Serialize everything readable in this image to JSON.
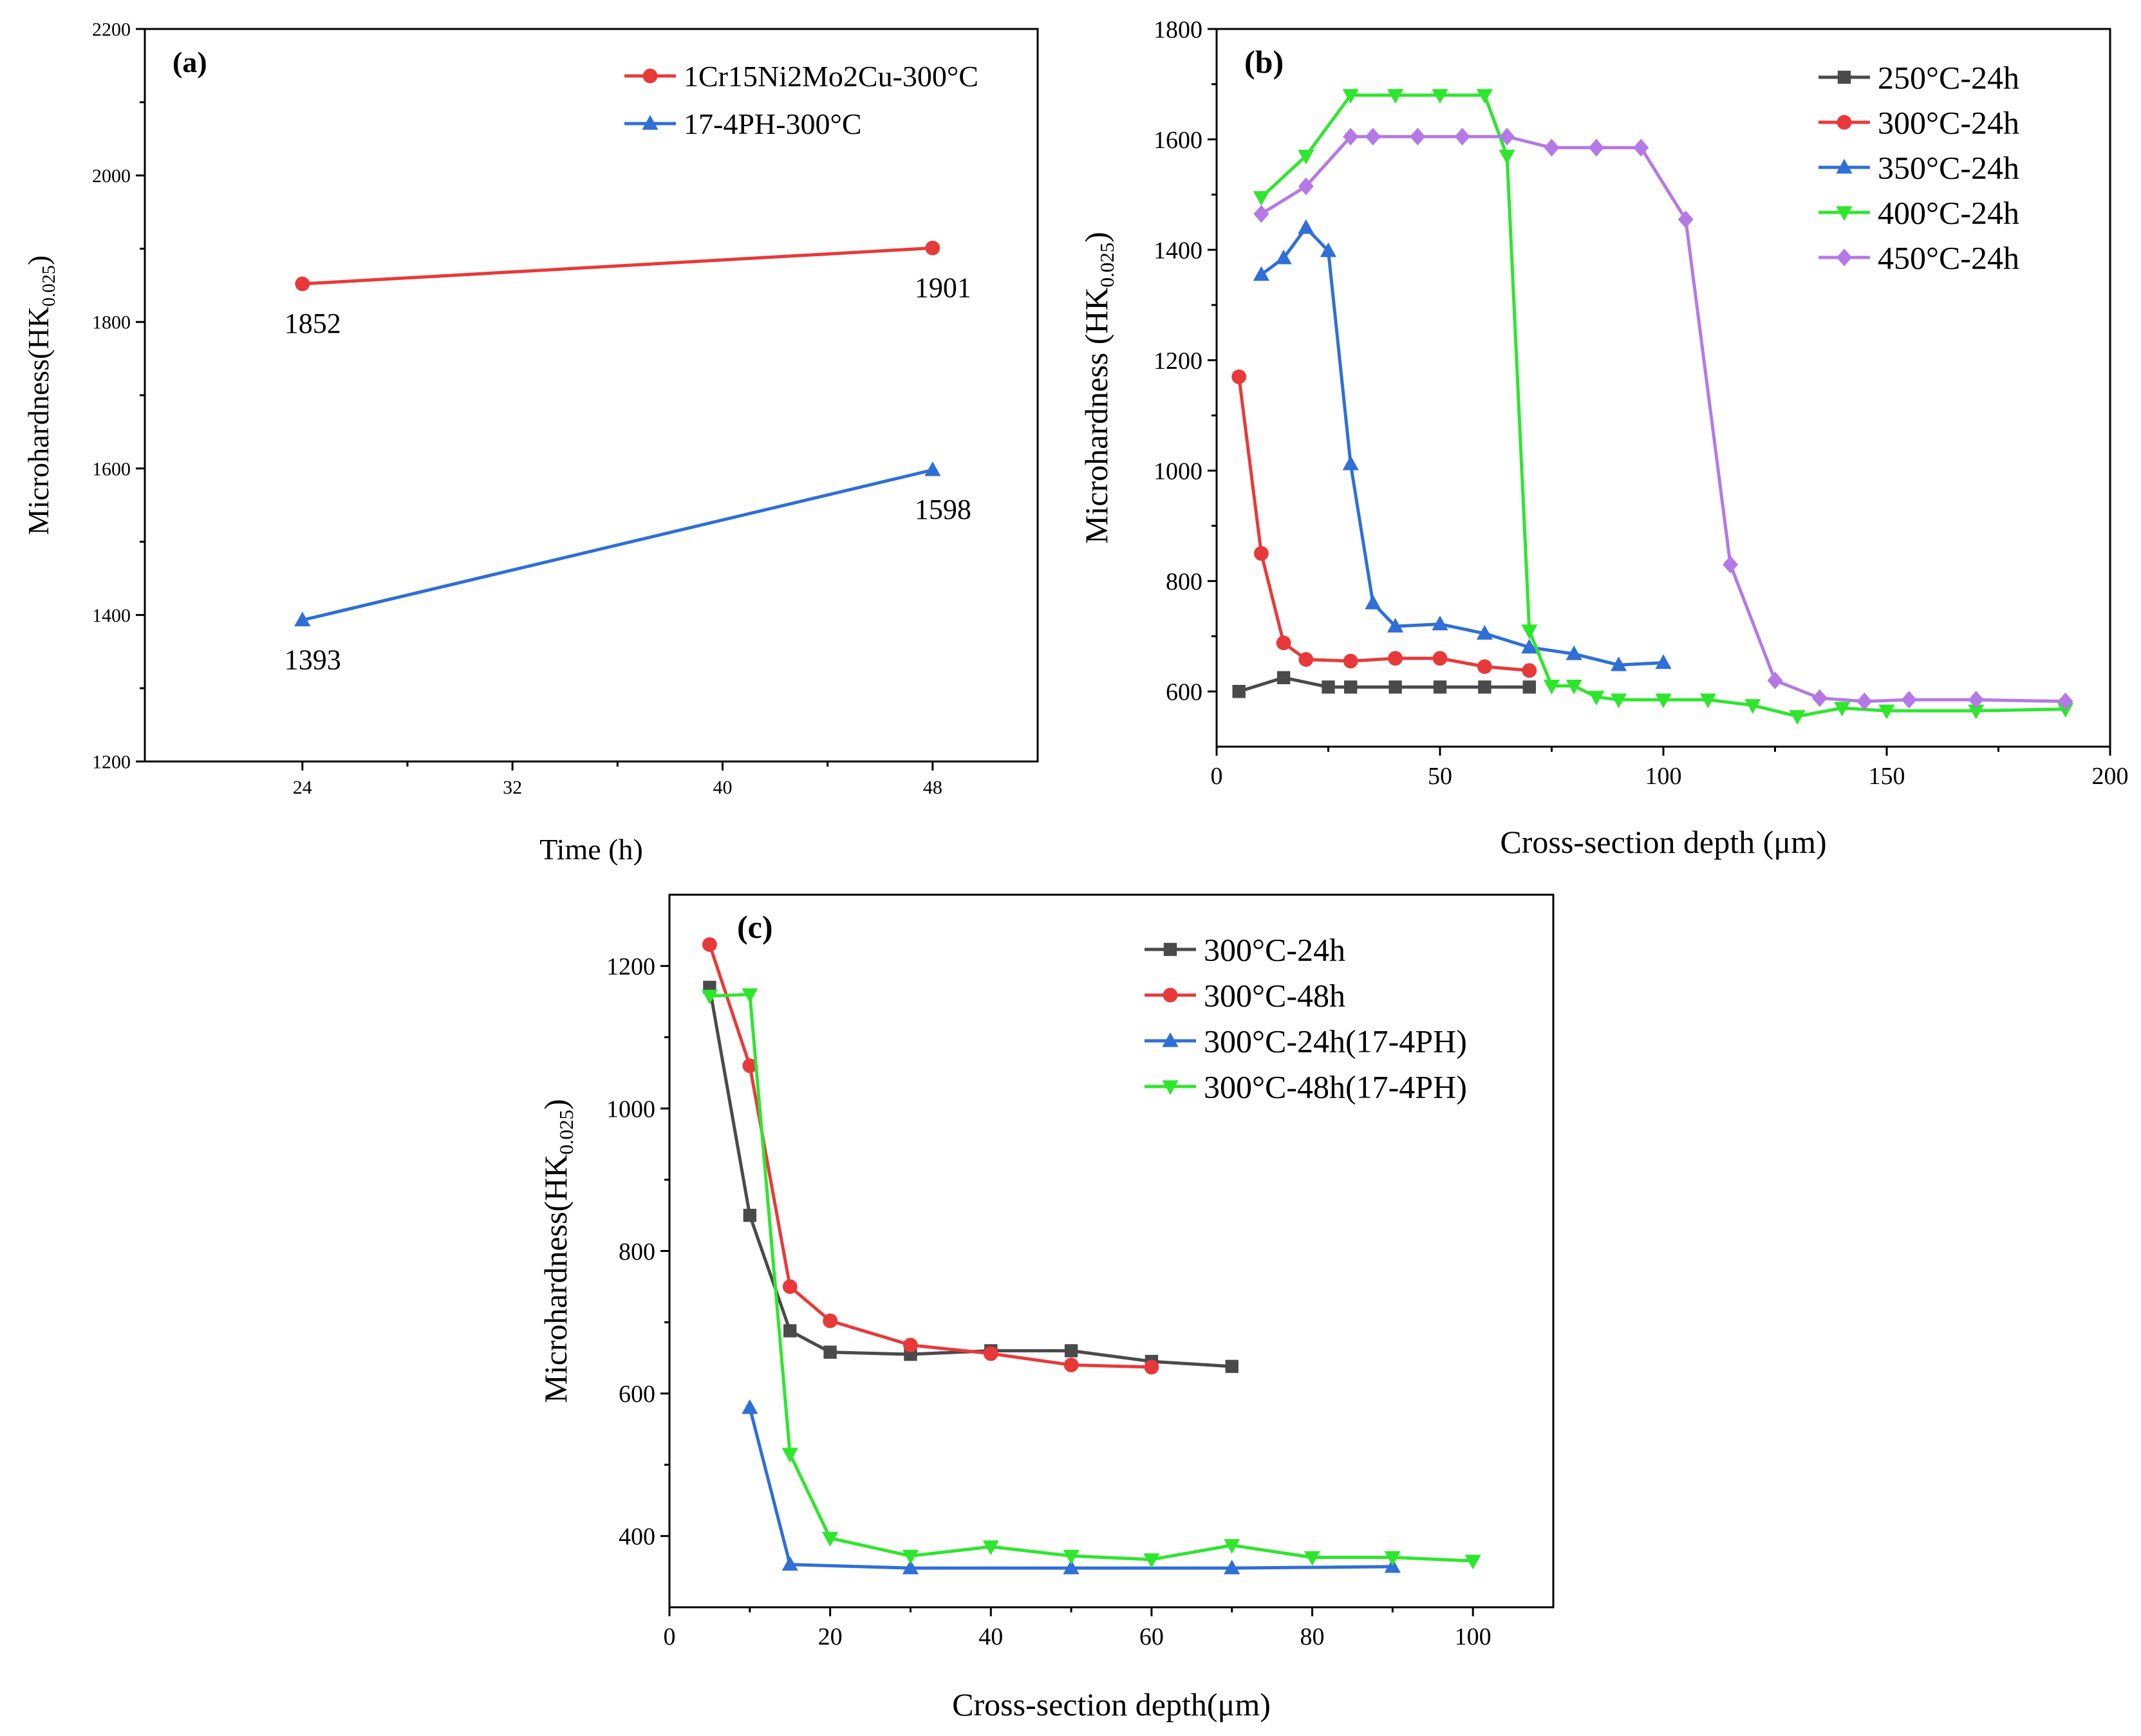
{
  "chart_data": [
    {
      "id": "a",
      "type": "line",
      "panel_label": "(a)",
      "xlabel": "Time (h)",
      "ylabel_main": "Microhardness(HK",
      "ylabel_sub": "0.025",
      "ylabel_close": ")",
      "xlim": [
        18,
        52
      ],
      "ylim": [
        1200,
        2200
      ],
      "xticks": [
        24,
        32,
        40,
        48
      ],
      "yticks": [
        1200,
        1400,
        1600,
        1800,
        2000,
        2200
      ],
      "legend_position": "top-right",
      "series": [
        {
          "name": "1Cr15Ni2Mo2Cu-300°C",
          "color": "#e8393a",
          "marker": "circle",
          "x": [
            24,
            48
          ],
          "y": [
            1852,
            1901
          ],
          "labels": [
            "1852",
            "1901"
          ]
        },
        {
          "name": "17-4PH-300°C",
          "color": "#2f6fd6",
          "marker": "triangle-up",
          "x": [
            24,
            48
          ],
          "y": [
            1393,
            1598
          ],
          "labels": [
            "1393",
            "1598"
          ]
        }
      ]
    },
    {
      "id": "b",
      "type": "line",
      "panel_label": "(b)",
      "xlabel": "Cross-section depth (μm)",
      "ylabel_main": "Microhardness (HK",
      "ylabel_sub": "0.025",
      "ylabel_close": ")",
      "xlim": [
        0,
        200
      ],
      "ylim": [
        500,
        1800
      ],
      "xticks": [
        0,
        50,
        100,
        150,
        200
      ],
      "yticks": [
        600,
        800,
        1000,
        1200,
        1400,
        1600,
        1800
      ],
      "legend_position": "top-right",
      "series": [
        {
          "name": "250°C-24h",
          "color": "#4a4a4a",
          "marker": "square",
          "x": [
            5,
            15,
            25,
            30,
            40,
            50,
            60,
            70
          ],
          "y": [
            600,
            625,
            608,
            608,
            608,
            608,
            608,
            608
          ]
        },
        {
          "name": "300°C-24h",
          "color": "#e8393a",
          "marker": "circle",
          "x": [
            5,
            10,
            15,
            20,
            30,
            40,
            50,
            60,
            70
          ],
          "y": [
            1170,
            850,
            688,
            658,
            655,
            660,
            660,
            645,
            638
          ]
        },
        {
          "name": "350°C-24h",
          "color": "#2f6fd6",
          "marker": "triangle-up",
          "x": [
            10,
            15,
            20,
            25,
            30,
            35,
            40,
            50,
            60,
            70,
            80,
            90,
            100
          ],
          "y": [
            1355,
            1385,
            1440,
            1398,
            1012,
            760,
            718,
            722,
            705,
            680,
            668,
            648,
            652
          ]
        },
        {
          "name": "400°C-24h",
          "color": "#2ee62e",
          "marker": "triangle-down",
          "x": [
            10,
            20,
            30,
            40,
            50,
            60,
            65,
            70,
            75,
            80,
            85,
            90,
            100,
            110,
            120,
            130,
            140,
            150,
            170,
            190
          ],
          "y": [
            1495,
            1570,
            1680,
            1680,
            1680,
            1680,
            1570,
            710,
            610,
            610,
            590,
            585,
            585,
            585,
            575,
            555,
            570,
            565,
            565,
            568
          ]
        },
        {
          "name": "450°C-24h",
          "color": "#b479e6",
          "marker": "diamond",
          "x": [
            10,
            20,
            30,
            35,
            45,
            55,
            65,
            75,
            85,
            95,
            105,
            115,
            125,
            135,
            145,
            155,
            170,
            190
          ],
          "y": [
            1465,
            1515,
            1605,
            1605,
            1605,
            1605,
            1605,
            1585,
            1585,
            1585,
            1455,
            830,
            620,
            588,
            582,
            585,
            585,
            582
          ]
        }
      ]
    },
    {
      "id": "c",
      "type": "line",
      "panel_label": "(c)",
      "xlabel": "Cross-section depth(μm)",
      "ylabel_main": "Microhardness(HK",
      "ylabel_sub": "0.025",
      "ylabel_close": ")",
      "xlim": [
        0,
        110
      ],
      "ylim": [
        300,
        1300
      ],
      "xticks": [
        0,
        20,
        40,
        60,
        80,
        100
      ],
      "yticks": [
        400,
        600,
        800,
        1000,
        1200
      ],
      "legend_position": "top-right",
      "series": [
        {
          "name": "300°C-24h",
          "color": "#4a4a4a",
          "marker": "square",
          "x": [
            5,
            10,
            15,
            20,
            30,
            40,
            50,
            60,
            70
          ],
          "y": [
            1170,
            850,
            688,
            658,
            655,
            660,
            660,
            645,
            638
          ]
        },
        {
          "name": "300°C-48h",
          "color": "#e8393a",
          "marker": "circle",
          "x": [
            5,
            10,
            15,
            20,
            30,
            40,
            50,
            60
          ],
          "y": [
            1230,
            1060,
            750,
            702,
            668,
            656,
            640,
            637
          ]
        },
        {
          "name": "300°C-24h(17-4PH)",
          "color": "#2f6fd6",
          "marker": "triangle-up",
          "x": [
            10,
            15,
            30,
            50,
            70,
            90
          ],
          "y": [
            580,
            360,
            355,
            355,
            355,
            357
          ]
        },
        {
          "name": "300°C-48h(17-4PH)",
          "color": "#2ee62e",
          "marker": "triangle-down",
          "x": [
            5,
            10,
            15,
            20,
            30,
            40,
            50,
            60,
            70,
            80,
            90,
            100
          ],
          "y": [
            1158,
            1160,
            515,
            397,
            372,
            385,
            372,
            367,
            387,
            370,
            370,
            365
          ]
        }
      ]
    }
  ]
}
